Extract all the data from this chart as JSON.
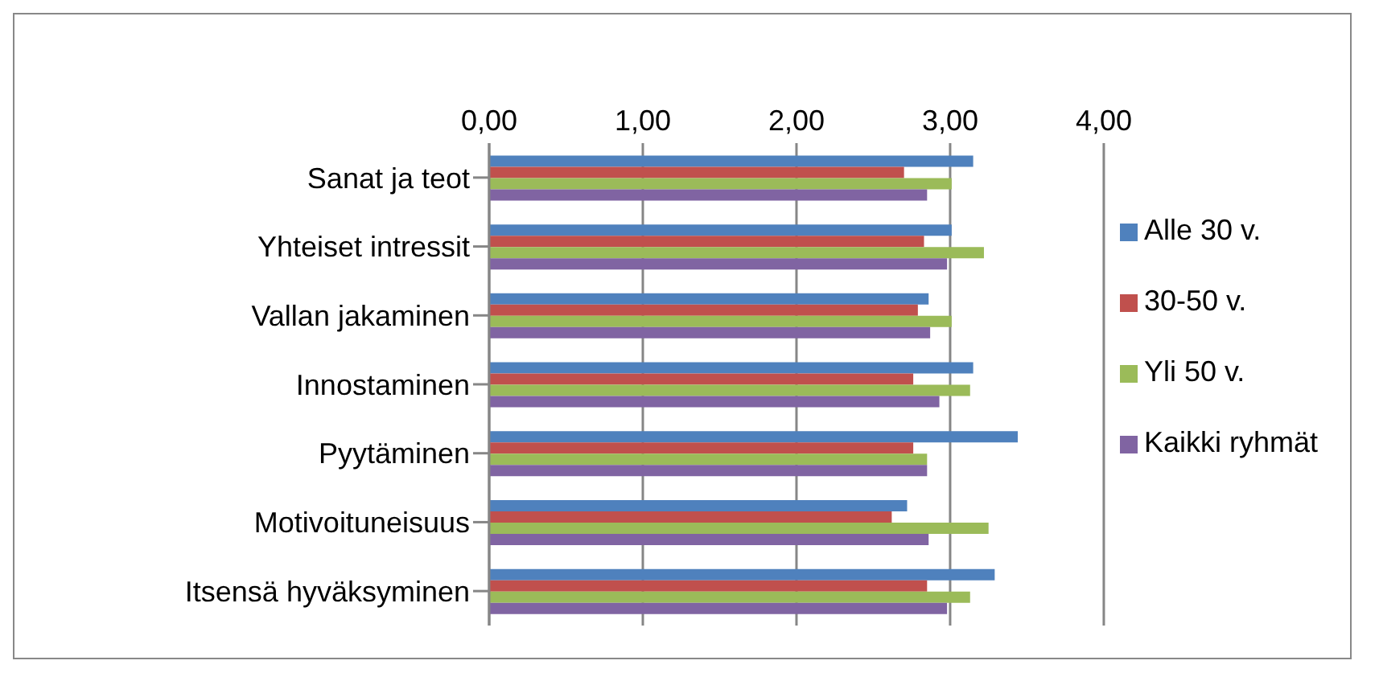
{
  "chart_data": {
    "type": "bar",
    "orientation": "horizontal",
    "categories": [
      "Sanat ja teot",
      "Yhteiset intressit",
      "Vallan jakaminen",
      "Innostaminen",
      "Pyytäminen",
      "Motivoituneisuus",
      "Itsensä hyväksyminen"
    ],
    "series": [
      {
        "name": "Alle 30 v.",
        "color": "#4f81bd",
        "values": [
          3.15,
          3.01,
          2.86,
          3.15,
          3.44,
          2.72,
          3.29
        ]
      },
      {
        "name": "30-50 v.",
        "color": "#c0504d",
        "values": [
          2.7,
          2.83,
          2.79,
          2.76,
          2.76,
          2.62,
          2.85
        ]
      },
      {
        "name": "Yli 50 v.",
        "color": "#9bbb59",
        "values": [
          3.01,
          3.22,
          3.01,
          3.13,
          2.85,
          3.25,
          3.13
        ]
      },
      {
        "name": "Kaikki ryhmät",
        "color": "#8064a2",
        "values": [
          2.85,
          2.98,
          2.87,
          2.93,
          2.85,
          2.86,
          2.98
        ]
      }
    ],
    "xlim": [
      0,
      4
    ],
    "xticks": [
      {
        "value": 0,
        "label": "0,00"
      },
      {
        "value": 1,
        "label": "1,00"
      },
      {
        "value": 2,
        "label": "2,00"
      },
      {
        "value": 3,
        "label": "3,00"
      },
      {
        "value": 4,
        "label": "4,00"
      }
    ],
    "grid": "x",
    "legend": "right"
  }
}
